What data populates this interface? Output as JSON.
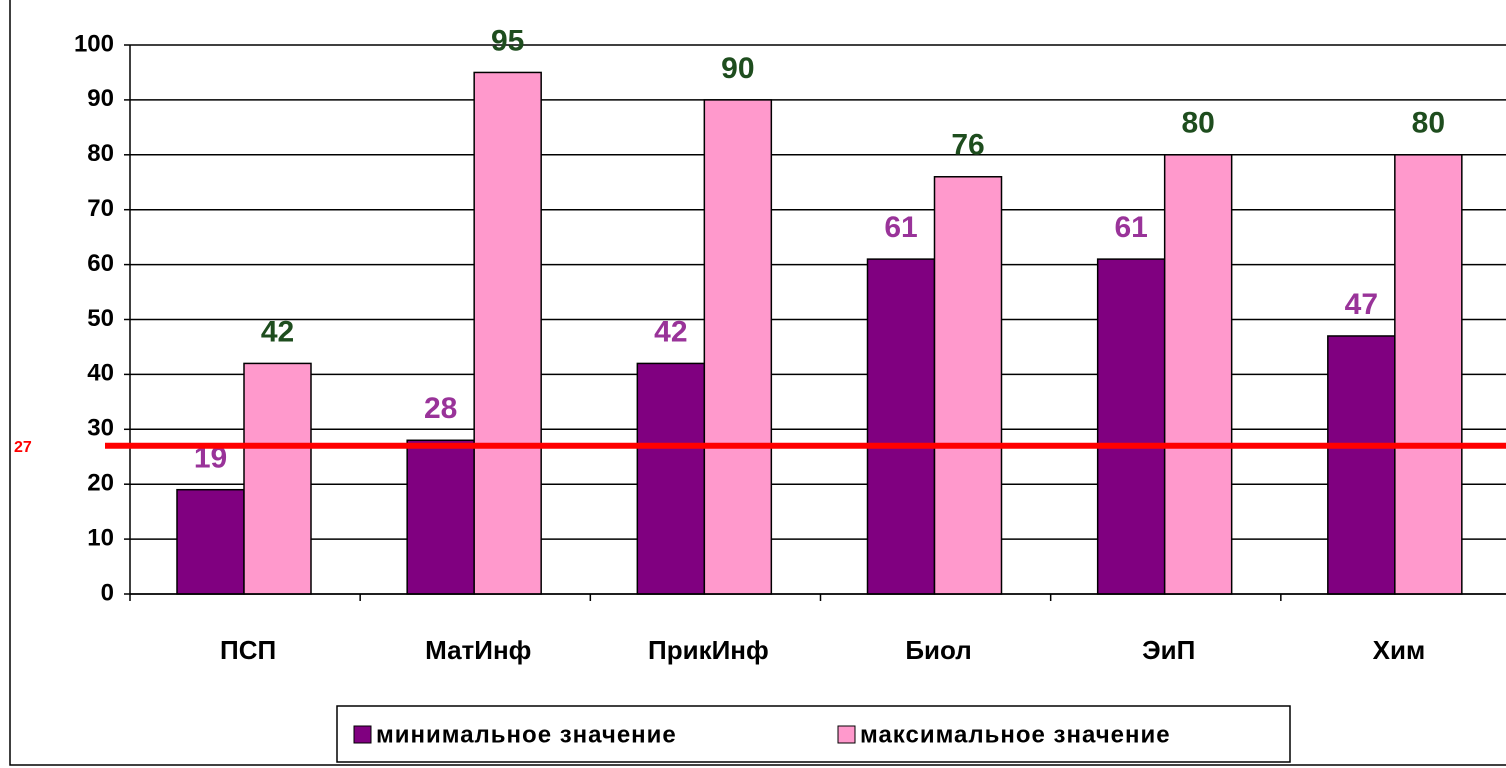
{
  "chart_data": {
    "type": "bar",
    "categories": [
      "ПСП",
      "МатИнф",
      "ПрикИнф",
      "Биол",
      "ЭиП",
      "Хим"
    ],
    "series": [
      {
        "name": "минимальное значение",
        "color": "#800080",
        "label_color": "#993399",
        "values": [
          19,
          28,
          42,
          61,
          61,
          47
        ]
      },
      {
        "name": "максимальное значение",
        "color": "#ff99cc",
        "label_color": "#1e4d1e",
        "values": [
          42,
          95,
          90,
          76,
          80,
          80
        ]
      }
    ],
    "ylim": [
      0,
      100
    ],
    "yticks": [
      0,
      10,
      20,
      30,
      40,
      50,
      60,
      70,
      80,
      90,
      100
    ],
    "grid": true,
    "reference_line": {
      "value": 27,
      "color": "#ff0000"
    },
    "legend": "bottom"
  }
}
